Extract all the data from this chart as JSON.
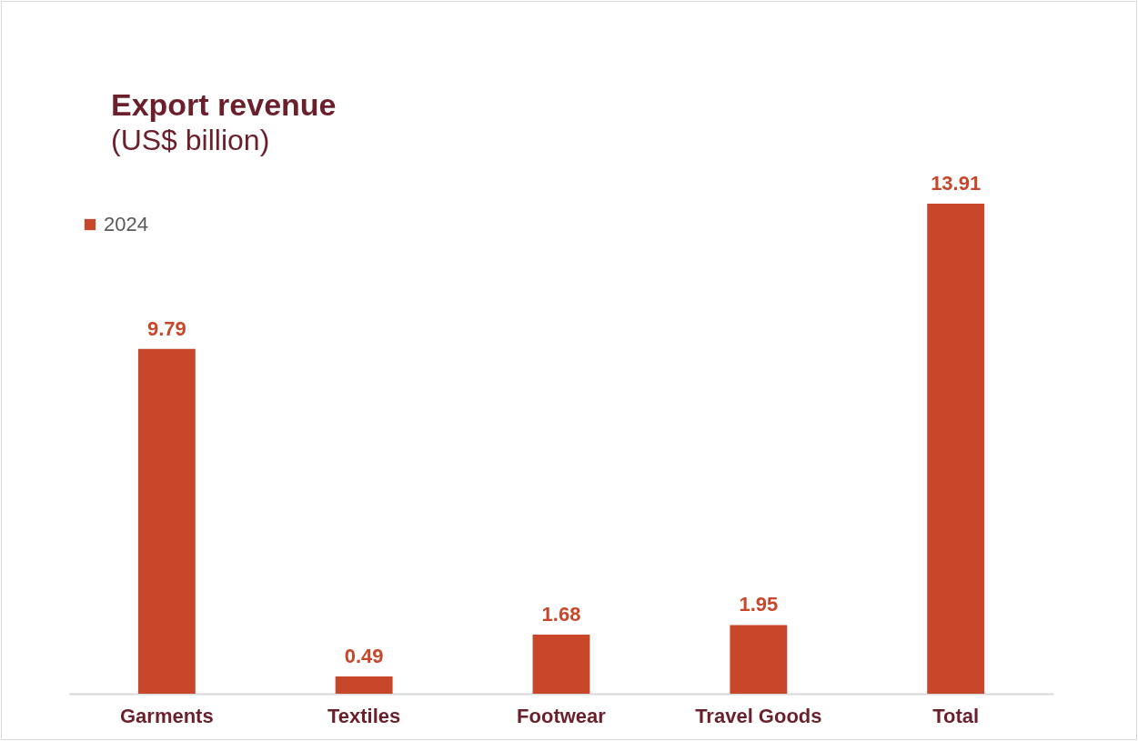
{
  "chart_data": {
    "type": "bar",
    "title": "Export revenue",
    "subtitle": "(US$ billion)",
    "categories": [
      "Garments",
      "Textiles",
      "Footwear",
      "Travel Goods",
      "Total"
    ],
    "series": [
      {
        "name": "2024",
        "color": "#c8472a",
        "values": [
          9.79,
          0.49,
          1.68,
          1.95,
          13.91
        ]
      }
    ],
    "data_labels": true,
    "legend": "top left",
    "grid": false
  }
}
